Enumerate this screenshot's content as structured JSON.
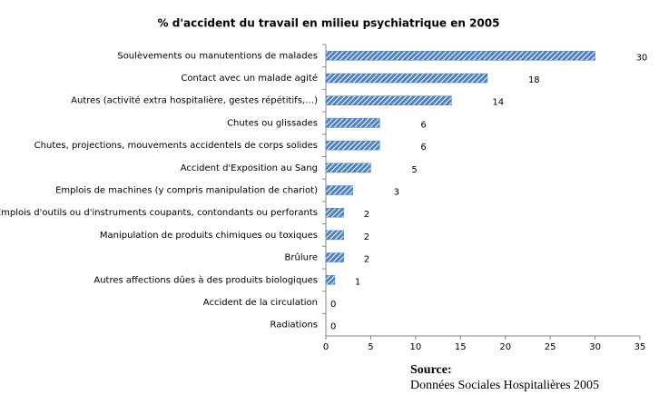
{
  "chart_data": {
    "type": "hbar",
    "title": "% d'accident du travail en milieu psychiatrique en 2005",
    "categories": [
      "Soulèvements ou manutentions de malades",
      "Contact avec un malade agité",
      "Autres (activité extra hospitalière, gestes répétitifs,…)",
      "Chutes ou glissades",
      "Chutes, projections, mouvements accidentels de corps solides",
      "Accident d'Exposition au Sang",
      "Emplois de machines (y compris manipulation de chariot)",
      "Emplois d'outils ou d'instruments coupants, contondants ou perforants",
      "Manipulation de produits chimiques ou toxiques",
      "Brûlure",
      "Autres affections dûes à des produits biologiques",
      "Accident de la circulation",
      "Radiations"
    ],
    "values": [
      30,
      18,
      14,
      6,
      6,
      5,
      3,
      2,
      2,
      2,
      1,
      0,
      0
    ],
    "color": "#4f81bd",
    "xlim": [
      0,
      35
    ],
    "xticks": [
      0,
      5,
      10,
      15,
      20,
      25,
      30,
      35
    ],
    "grid": false,
    "annotations": [
      "Source:",
      "Données Sociales Hospitalières 2005"
    ]
  }
}
